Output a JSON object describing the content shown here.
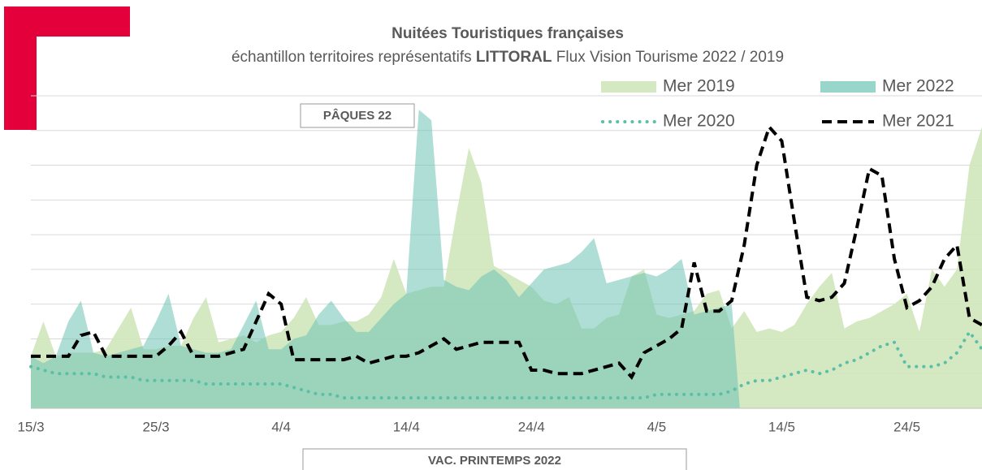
{
  "chart_data": {
    "type": "area",
    "title": "Nuitées Touristiques françaises",
    "subtitle": [
      "échantillon territoires représentatifs",
      "LITTORAL",
      "Flux Vision Tourisme 2022 / 2019"
    ],
    "annotations": [
      "PÂQUES 22",
      "VAC. PRINTEMPS 2022"
    ],
    "categories": [
      "15/3",
      null,
      null,
      null,
      null,
      null,
      null,
      null,
      null,
      null,
      "25/3",
      null,
      null,
      null,
      null,
      null,
      null,
      null,
      null,
      null,
      "4/4",
      null,
      null,
      null,
      null,
      null,
      null,
      null,
      null,
      null,
      "14/4",
      null,
      null,
      null,
      null,
      null,
      null,
      null,
      null,
      null,
      "24/4",
      null,
      null,
      null,
      null,
      null,
      null,
      null,
      null,
      null,
      "4/5",
      null,
      null,
      null,
      null,
      null,
      null,
      null,
      null,
      null,
      "14/5",
      null,
      null,
      null,
      null,
      null,
      null,
      null,
      null,
      null,
      "24/5",
      null,
      null,
      null,
      null,
      null,
      null
    ],
    "ylim": [
      0,
      9
    ],
    "yticks": [
      1,
      2,
      3,
      4,
      5,
      6,
      7,
      8,
      9
    ],
    "grid": true,
    "series": [
      {
        "name": "Mer 2019",
        "style": "area",
        "color": "#cfe6bb",
        "values": [
          1.5,
          2.5,
          1.5,
          1.6,
          1.6,
          1.6,
          1.7,
          2.3,
          2.9,
          1.7,
          1.7,
          1.8,
          1.8,
          2.6,
          3.2,
          1.9,
          2.0,
          2.1,
          1.9,
          2.1,
          2.2,
          2.6,
          3.2,
          2.4,
          2.4,
          2.5,
          2.5,
          2.7,
          3.2,
          4.3,
          3.3,
          3.4,
          3.5,
          3.5,
          5.6,
          7.5,
          6.5,
          4.1,
          3.9,
          3.7,
          3.5,
          3.1,
          3.0,
          3.2,
          2.3,
          2.3,
          2.6,
          2.7,
          3.8,
          4.0,
          2.7,
          2.6,
          2.7,
          2.8,
          3.3,
          3.4,
          2.3,
          2.8,
          2.2,
          2.3,
          2.2,
          2.4,
          3.0,
          3.5,
          3.9,
          2.3,
          2.5,
          2.6,
          2.8,
          3.0,
          3.3,
          2.2,
          4.0,
          3.5,
          4.0,
          7.0,
          8.1
        ]
      },
      {
        "name": "Mer 2022",
        "style": "area",
        "color": "#6cc3b4",
        "values": [
          1.5,
          1.3,
          1.5,
          2.5,
          3.1,
          1.6,
          1.5,
          1.6,
          1.7,
          1.8,
          2.5,
          3.3,
          1.8,
          1.7,
          1.6,
          1.6,
          1.7,
          2.4,
          3.1,
          1.7,
          1.7,
          2.0,
          2.1,
          2.7,
          3.1,
          2.6,
          2.2,
          2.2,
          2.6,
          3.0,
          3.3,
          8.6,
          8.3,
          3.7,
          3.5,
          3.4,
          3.8,
          4.0,
          3.7,
          3.2,
          3.6,
          4.0,
          4.1,
          4.2,
          4.5,
          4.9,
          3.6,
          3.7,
          3.8,
          3.9,
          3.8,
          4.0,
          4.3,
          2.7,
          2.8,
          2.9,
          3.0,
          null,
          null,
          null,
          null,
          null,
          null,
          null,
          null,
          null,
          null,
          null,
          null,
          null,
          null,
          null,
          null,
          null,
          null,
          null,
          null
        ]
      },
      {
        "name": "Mer 2020",
        "style": "dotted",
        "color": "#5bbfa8",
        "values": [
          1.2,
          1.1,
          1.0,
          1.0,
          1.0,
          1.0,
          0.9,
          0.9,
          0.9,
          0.8,
          0.8,
          0.8,
          0.8,
          0.8,
          0.7,
          0.7,
          0.7,
          0.7,
          0.7,
          0.7,
          0.7,
          0.6,
          0.5,
          0.4,
          0.4,
          0.3,
          0.3,
          0.3,
          0.3,
          0.3,
          0.3,
          0.3,
          0.3,
          0.3,
          0.3,
          0.3,
          0.3,
          0.3,
          0.3,
          0.3,
          0.3,
          0.3,
          0.3,
          0.3,
          0.3,
          0.3,
          0.3,
          0.3,
          0.3,
          0.3,
          0.4,
          0.4,
          0.4,
          0.4,
          0.4,
          0.4,
          0.5,
          0.7,
          0.8,
          0.8,
          0.9,
          1.0,
          1.1,
          1.0,
          1.1,
          1.3,
          1.4,
          1.6,
          1.8,
          1.9,
          1.2,
          1.2,
          1.2,
          1.3,
          1.6,
          2.2,
          1.7
        ]
      },
      {
        "name": "Mer 2021",
        "style": "dashed",
        "color": "#000000",
        "values": [
          1.5,
          1.5,
          1.5,
          1.5,
          2.1,
          2.2,
          1.5,
          1.5,
          1.5,
          1.5,
          1.5,
          1.8,
          2.2,
          1.5,
          1.5,
          1.5,
          1.6,
          1.7,
          2.5,
          3.3,
          3.0,
          1.4,
          1.4,
          1.4,
          1.4,
          1.4,
          1.5,
          1.3,
          1.4,
          1.5,
          1.5,
          1.6,
          1.8,
          2.0,
          1.7,
          1.8,
          1.9,
          1.9,
          1.9,
          1.9,
          1.1,
          1.1,
          1.0,
          1.0,
          1.0,
          1.1,
          1.2,
          1.3,
          0.9,
          1.6,
          1.8,
          2.0,
          2.3,
          4.2,
          2.8,
          2.8,
          3.1,
          4.7,
          7.0,
          8.1,
          7.7,
          5.4,
          3.2,
          3.1,
          3.2,
          3.6,
          5.2,
          6.9,
          6.7,
          4.3,
          2.9,
          3.1,
          3.5,
          4.3,
          4.7,
          2.6,
          2.4
        ]
      }
    ]
  }
}
